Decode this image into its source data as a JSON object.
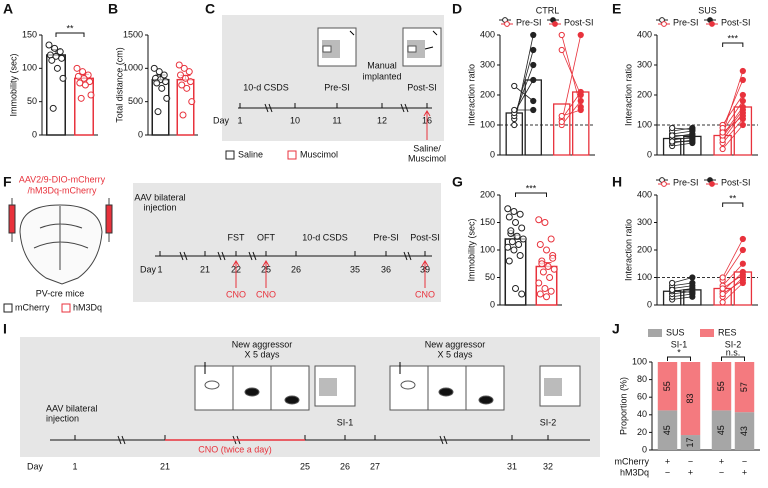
{
  "chart_data": [
    {
      "type": "bar",
      "panel": "A",
      "ylabel": "Immobility (sec)",
      "ylim": [
        0,
        150
      ],
      "yticks": [
        0,
        50,
        100,
        150
      ],
      "categories": [
        null,
        null
      ],
      "values": [
        120,
        85
      ],
      "errors": [
        8,
        6
      ],
      "colors": [
        "#222222",
        "#e8323c"
      ],
      "points": [
        [
          135,
          130,
          125,
          120,
          118,
          115,
          112,
          100,
          85,
          40
        ],
        [
          100,
          95,
          90,
          88,
          85,
          80,
          78,
          75,
          60,
          55
        ]
      ],
      "significance": "**"
    },
    {
      "type": "bar",
      "panel": "B",
      "ylabel": "Total distance (cm)",
      "ylim": [
        0,
        1500
      ],
      "yticks": [
        0,
        500,
        1000,
        1500
      ],
      "categories": [
        null,
        null
      ],
      "values": [
        830,
        830
      ],
      "errors": [
        70,
        65
      ],
      "colors": [
        "#222222",
        "#e8323c"
      ],
      "points": [
        [
          1000,
          950,
          900,
          850,
          830,
          800,
          780,
          700,
          550,
          350
        ],
        [
          1050,
          1000,
          950,
          900,
          850,
          800,
          750,
          700,
          500,
          300
        ]
      ]
    },
    {
      "type": "paired",
      "panel": "D",
      "title": "CTRL",
      "ylabel": "Interaction ratio",
      "ylim": [
        0,
        400
      ],
      "yticks": [
        0,
        100,
        200,
        300,
        400
      ],
      "reference_line": 100,
      "categories": [
        null,
        null
      ],
      "colors": [
        "#222222",
        "#e8323c"
      ],
      "series": [
        {
          "name": "Pre-SI",
          "marker": "open",
          "values": [
            140,
            170
          ],
          "points": [
            [
              100,
              120,
              130,
              140,
              150,
              230
            ],
            [
              400,
              350,
              120,
              100,
              110,
              130
            ]
          ]
        },
        {
          "name": "Post-SI",
          "marker": "filled",
          "values": [
            250,
            210
          ],
          "points": [
            [
              400,
              350,
              300,
              250,
              150,
              180
            ],
            [
              160,
              200,
              210,
              180,
              400,
              150
            ]
          ]
        }
      ]
    },
    {
      "type": "paired",
      "panel": "E",
      "title": "SUS",
      "ylabel": "Interaction ratio",
      "ylim": [
        0,
        400
      ],
      "yticks": [
        0,
        100,
        200,
        300,
        400
      ],
      "reference_line": 100,
      "categories": [
        null,
        null
      ],
      "colors": [
        "#222222",
        "#e8323c"
      ],
      "significance": "***",
      "series": [
        {
          "name": "Pre-SI",
          "marker": "open",
          "values": [
            55,
            65
          ],
          "points": [
            [
              30,
              40,
              50,
              60,
              70,
              80,
              90,
              55,
              45,
              65
            ],
            [
              20,
              40,
              60,
              80,
              100,
              90,
              70,
              50,
              65,
              75
            ]
          ]
        },
        {
          "name": "Post-SI",
          "marker": "filled",
          "values": [
            62,
            160
          ],
          "points": [
            [
              40,
              50,
              60,
              70,
              80,
              90,
              85,
              55,
              45,
              65
            ],
            [
              100,
              120,
              150,
              180,
              200,
              250,
              280,
              140,
              160,
              130
            ]
          ]
        }
      ]
    },
    {
      "type": "bar",
      "panel": "G",
      "ylabel": "Immobility (sec)",
      "ylim": [
        0,
        200
      ],
      "yticks": [
        0,
        50,
        100,
        150,
        200
      ],
      "categories": [
        null,
        null
      ],
      "values": [
        120,
        70
      ],
      "errors": [
        7,
        7
      ],
      "colors": [
        "#222222",
        "#e8323c"
      ],
      "points": [
        [
          175,
          170,
          165,
          160,
          150,
          140,
          130,
          125,
          120,
          115,
          110,
          105,
          100,
          90,
          80,
          30,
          20,
          135
        ],
        [
          155,
          150,
          120,
          110,
          100,
          90,
          80,
          70,
          65,
          60,
          50,
          40,
          30,
          25,
          20,
          15,
          85,
          75
        ]
      ],
      "significance": "***"
    },
    {
      "type": "paired",
      "panel": "H",
      "ylabel": "Interaction ratio",
      "ylim": [
        0,
        400
      ],
      "yticks": [
        0,
        100,
        200,
        300,
        400
      ],
      "reference_line": 100,
      "categories": [
        null,
        null
      ],
      "colors": [
        "#222222",
        "#e8323c"
      ],
      "significance": "**",
      "series": [
        {
          "name": "Pre-SI",
          "marker": "open",
          "values": [
            50,
            60
          ],
          "points": [
            [
              20,
              30,
              40,
              50,
              60,
              70,
              80,
              55
            ],
            [
              10,
              30,
              50,
              70,
              90,
              100,
              60,
              40
            ]
          ]
        },
        {
          "name": "Post-SI",
          "marker": "filled",
          "values": [
            55,
            120
          ],
          "points": [
            [
              30,
              40,
              50,
              60,
              70,
              80,
              100,
              45
            ],
            [
              80,
              100,
              120,
              150,
              200,
              240,
              110,
              90
            ]
          ]
        }
      ]
    },
    {
      "type": "stacked",
      "panel": "J",
      "ylabel": "Proportion (%)",
      "ylim": [
        0,
        100
      ],
      "yticks": [
        0,
        20,
        40,
        60,
        80,
        100
      ],
      "groups": [
        {
          "title": "SI-1",
          "significance": "*"
        },
        {
          "title": "SI-2",
          "significance": "n.s."
        }
      ],
      "series": [
        {
          "name": "SUS",
          "color": "#a6a6a6",
          "values": [
            45,
            17,
            45,
            43
          ]
        },
        {
          "name": "RES",
          "color": "#f47a7f",
          "values": [
            55,
            83,
            55,
            57
          ]
        }
      ],
      "rows": [
        {
          "name": "mCherry",
          "signs": [
            "+",
            "−",
            "+",
            "−"
          ]
        },
        {
          "name": "hM3Dq",
          "signs": [
            "−",
            "+",
            "−",
            "+"
          ]
        }
      ]
    }
  ],
  "diagrams": {
    "C": {
      "panel": "C",
      "csds": "10-d CSDS",
      "pre": "Pre-SI",
      "manual": [
        "Manual",
        "implanted"
      ],
      "post": "Post-SI",
      "day_label": "Day",
      "days": [
        "1",
        "10",
        "11",
        "12",
        "16"
      ],
      "treatment": [
        "Saline/",
        "Muscimol"
      ],
      "legend": [
        "Saline",
        "Muscimol"
      ]
    },
    "F": {
      "panel": "F",
      "virus": [
        "AAV2/9-DIO-mCherry",
        "/hM3Dq-mCherry"
      ],
      "mouse": "PV-cre mice",
      "legend": [
        "mCherry",
        "hM3Dq"
      ],
      "injection": [
        "AAV bilateral",
        "injection"
      ],
      "stages": [
        "FST",
        "OFT",
        "10-d CSDS",
        "Pre-SI",
        "Post-SI"
      ],
      "day_label": "Day",
      "days": [
        "1",
        "21",
        "22",
        "25",
        "26",
        "35",
        "36",
        "39"
      ],
      "cno": [
        "CNO",
        "CNO",
        "CNO"
      ]
    },
    "I": {
      "panel": "I",
      "aggressor": [
        [
          "New aggressor",
          "X 5 days"
        ],
        [
          "New aggressor",
          "X 5 days"
        ]
      ],
      "tests": [
        "SI-1",
        "SI-2"
      ],
      "injection": [
        "AAV bilateral",
        "injection"
      ],
      "cno": "CNO (twice a day)",
      "day_label": "Day",
      "days": [
        "1",
        "21",
        "25",
        "26",
        "27",
        "31",
        "32"
      ]
    }
  }
}
